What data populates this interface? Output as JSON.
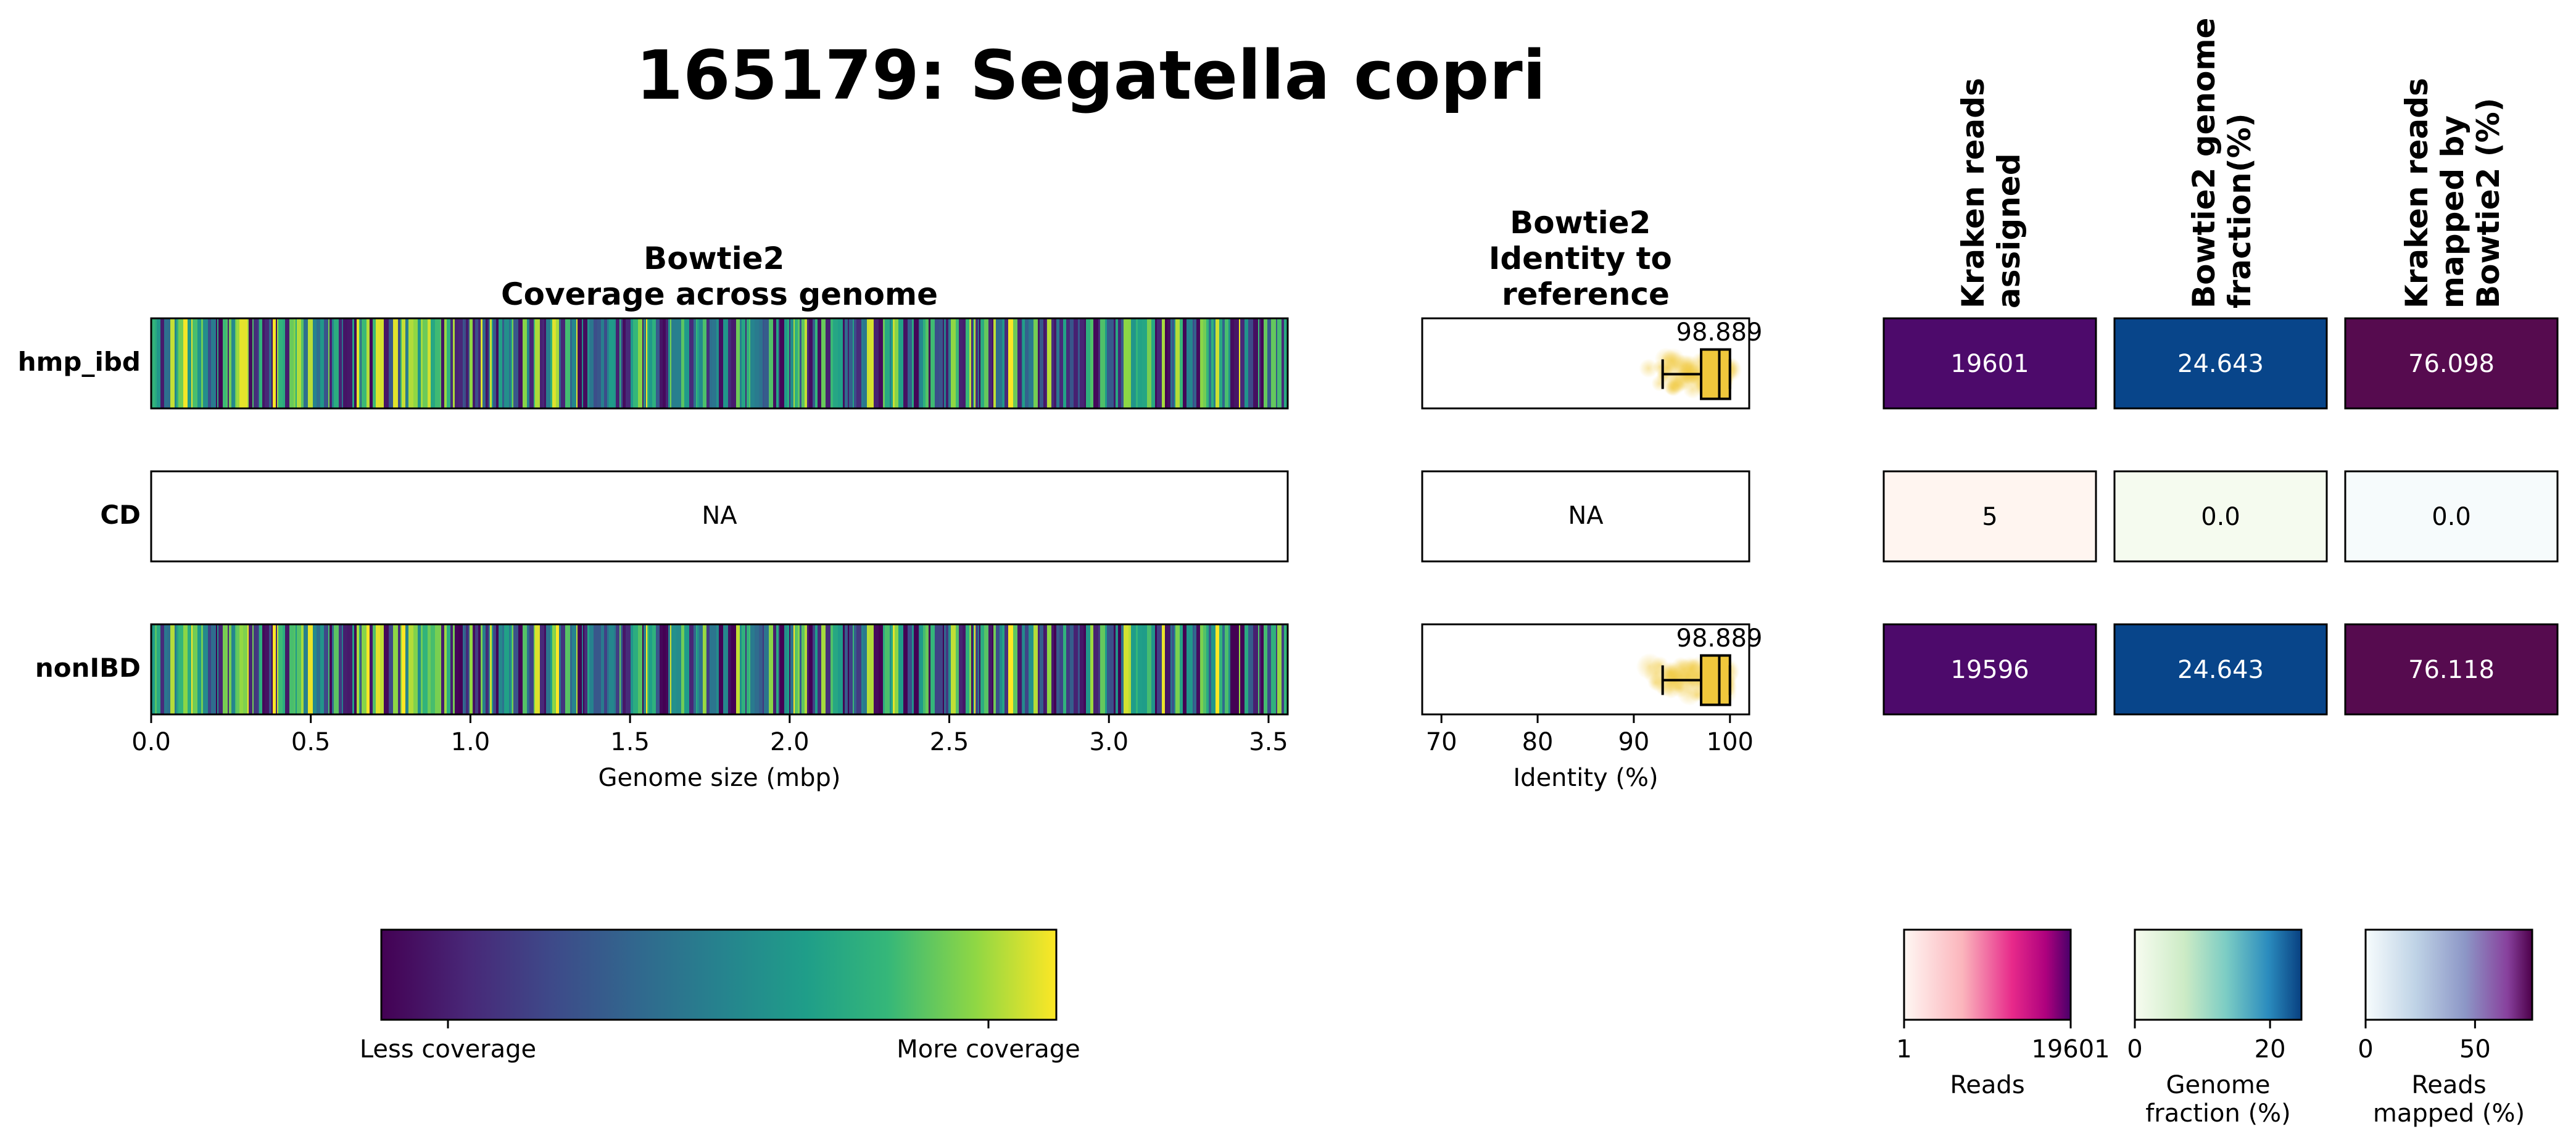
{
  "title": "165179: Segatella copri",
  "samples": [
    "hmp_ibd",
    "CD",
    "nonIBD"
  ],
  "na_label": "NA",
  "colors": {
    "kraken_high": "#4d0a6b",
    "kraken_low": "#fff5f0",
    "genome_high": "#08458a",
    "genome_low": "#f5fbef",
    "mapped_high": "#560b4f",
    "mapped_low": "#f6fbfc",
    "identity_fill": "#f0c83c"
  },
  "chart_data": [
    {
      "type": "heatmap",
      "title": "Bowtie2\nCoverage across genome",
      "xlabel": "Genome size (mbp)",
      "xlim": [
        0,
        3.56
      ],
      "xticks": [
        "0.0",
        "0.5",
        "1.0",
        "1.5",
        "2.0",
        "2.5",
        "3.0",
        "3.5"
      ],
      "xtick_values": [
        0,
        0.5,
        1.0,
        1.5,
        2.0,
        2.5,
        3.0,
        3.5
      ],
      "rows": [
        {
          "sample": "hmp_ibd",
          "has_data": true
        },
        {
          "sample": "CD",
          "has_data": false
        },
        {
          "sample": "nonIBD",
          "has_data": true
        }
      ],
      "colormap": "viridis",
      "colorbar": {
        "low_label": "Less coverage",
        "high_label": "More coverage"
      }
    },
    {
      "type": "box",
      "title": "Bowtie2\nIdentity to\nreference",
      "xlabel": "Identity (%)",
      "xlim": [
        68,
        102
      ],
      "xticks": [
        "70",
        "80",
        "90",
        "100"
      ],
      "xtick_values": [
        70,
        80,
        90,
        100
      ],
      "rows": [
        {
          "sample": "hmp_ibd",
          "has_data": true,
          "whisker_low": 93,
          "q1": 97,
          "median": 98.889,
          "q3": 100,
          "whisker_high": 100,
          "label": "98.889"
        },
        {
          "sample": "CD",
          "has_data": false
        },
        {
          "sample": "nonIBD",
          "has_data": true,
          "whisker_low": 93,
          "q1": 97,
          "median": 98.889,
          "q3": 100,
          "whisker_high": 100,
          "label": "98.889"
        }
      ]
    },
    {
      "type": "table",
      "columns": [
        {
          "key": "kraken",
          "header": "Kraken reads\nassigned",
          "values": [
            "19601",
            "5",
            "19596"
          ]
        },
        {
          "key": "genome",
          "header": "Bowtie2 genome\nfraction(%)",
          "values": [
            "24.643",
            "0.0",
            "24.643"
          ]
        },
        {
          "key": "mapped",
          "header": "Kraken reads\nmapped by\nBowtie2 (%)",
          "values": [
            "76.098",
            "0.0",
            "76.118"
          ]
        }
      ],
      "colorbars": [
        {
          "key": "kraken",
          "min": 1,
          "max": 19601,
          "ticks": [
            "1",
            "19601"
          ],
          "tick_values": [
            1,
            19601
          ],
          "label": "Reads"
        },
        {
          "key": "genome",
          "min": 0,
          "max": 24.643,
          "ticks": [
            "0",
            "20"
          ],
          "tick_values": [
            0,
            20
          ],
          "label": "Genome\nfraction (%)"
        },
        {
          "key": "mapped",
          "min": 0,
          "max": 76.118,
          "ticks": [
            "0",
            "50"
          ],
          "tick_values": [
            0,
            50
          ],
          "label": "Reads\nmapped (%)"
        }
      ]
    }
  ]
}
